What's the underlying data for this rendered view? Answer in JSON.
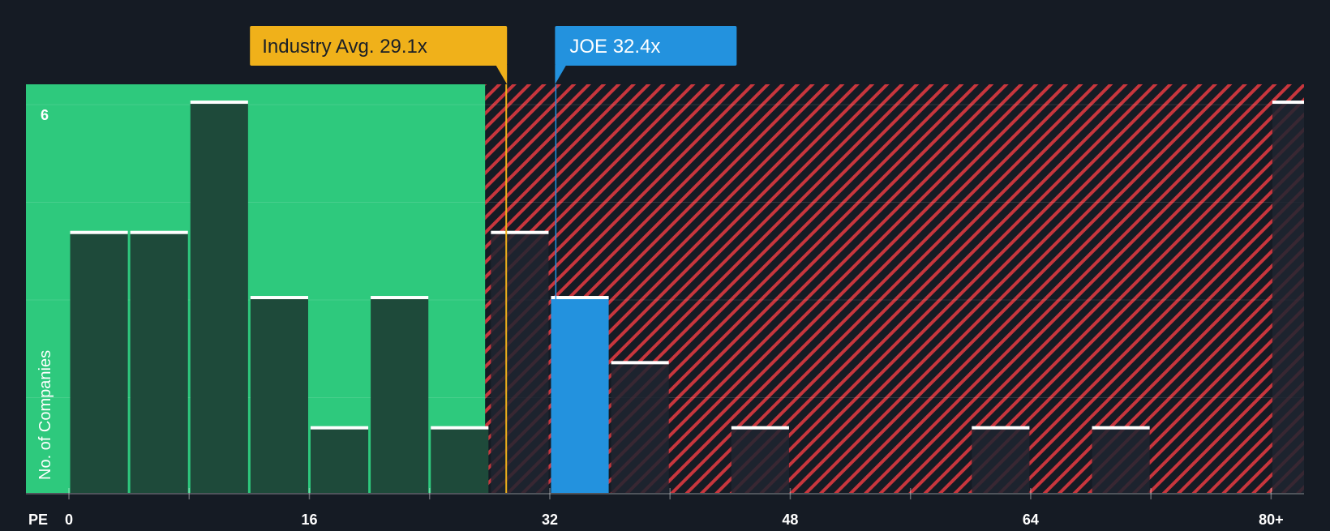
{
  "colors": {
    "background": "#151b24",
    "below_zone": "#2ec97d",
    "above_zone_hatch": "#c8363d",
    "bar_dark": "#1e4a3a",
    "bar_above": "#1f2530",
    "bar_highlight": "#2392de",
    "industry_label": "#f0b11a",
    "company_label": "#2392de",
    "cap": "#ffffff",
    "text": "#ffffff"
  },
  "chart_data": {
    "type": "bar",
    "title": "",
    "xlabel": "PE",
    "ylabel": "No. of Companies",
    "x_tick_labels": [
      "0",
      "16",
      "32",
      "48",
      "64",
      "80+"
    ],
    "x_ticks": [
      0,
      16,
      32,
      48,
      64,
      80
    ],
    "y_tick_labels": [
      "6"
    ],
    "y_ticks": [
      6
    ],
    "xlim": [
      0,
      82
    ],
    "ylim": [
      0,
      6.2
    ],
    "bin_width": 4,
    "bars": [
      {
        "x": 0,
        "value": 4,
        "zone": "below"
      },
      {
        "x": 4,
        "value": 4,
        "zone": "below"
      },
      {
        "x": 8,
        "value": 6,
        "zone": "below"
      },
      {
        "x": 12,
        "value": 3,
        "zone": "below"
      },
      {
        "x": 16,
        "value": 1,
        "zone": "below"
      },
      {
        "x": 20,
        "value": 3,
        "zone": "below"
      },
      {
        "x": 24,
        "value": 1,
        "zone": "below"
      },
      {
        "x": 28,
        "value": 4,
        "zone": "above"
      },
      {
        "x": 32,
        "value": 3,
        "zone": "highlight"
      },
      {
        "x": 36,
        "value": 2,
        "zone": "above"
      },
      {
        "x": 44,
        "value": 1,
        "zone": "above"
      },
      {
        "x": 60,
        "value": 1,
        "zone": "above"
      },
      {
        "x": 68,
        "value": 1,
        "zone": "above"
      },
      {
        "x": 80,
        "value": 6,
        "zone": "above"
      }
    ],
    "zone_boundary": 27.7,
    "industry_avg": {
      "value": 29.1,
      "label": "Industry Avg. 29.1x"
    },
    "company": {
      "value": 32.4,
      "label": "JOE 32.4x",
      "ticker": "JOE"
    }
  }
}
